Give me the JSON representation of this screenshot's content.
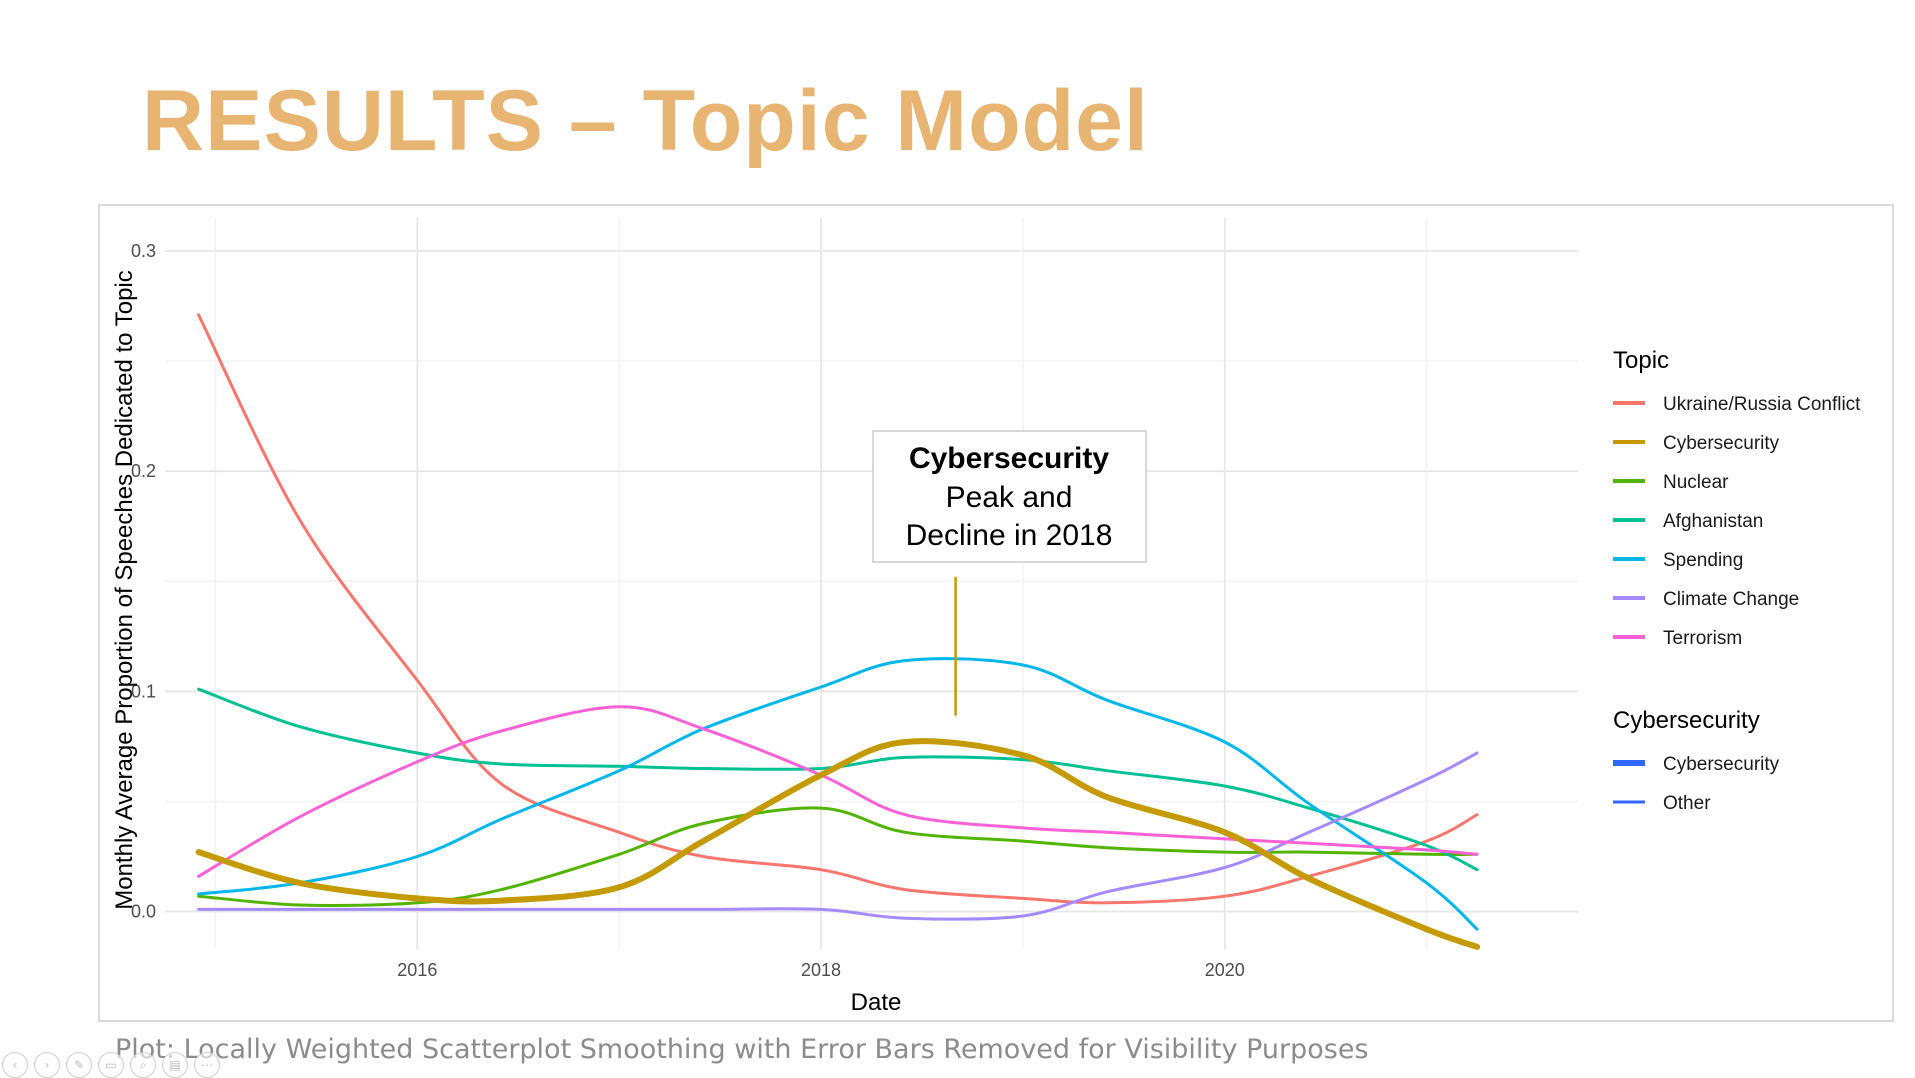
{
  "slide": {
    "title": "RESULTS – Topic Model",
    "caption": "Plot: Locally Weighted Scatterplot Smoothing with Error Bars Removed for Visibility Purposes",
    "title_color": "#E8B472",
    "nav_icons": [
      "prev-icon",
      "next-icon",
      "pen-icon",
      "slides-icon",
      "zoom-icon",
      "subtitles-icon",
      "more-icon"
    ]
  },
  "chart_data": {
    "type": "line",
    "xlabel": "Date",
    "ylabel": "Monthly Average Proportion of Speeches Dedicated to Topic",
    "xlim": [
      "2014-10",
      "2021-10"
    ],
    "ylim": [
      -0.017,
      0.315
    ],
    "x_ticks": [
      "2016",
      "2018",
      "2020"
    ],
    "y_ticks": [
      "0.0",
      "0.1",
      "0.2",
      "0.3"
    ],
    "grid": true,
    "legend_placement": "right",
    "legend_topic_title": "Topic",
    "legend_group_title": "Cybersecurity",
    "group_entries": [
      {
        "name": "Cybersecurity",
        "color": "#3366FF"
      },
      {
        "name": "Other",
        "color": "#3366FF"
      }
    ],
    "x": [
      "2014-12",
      "2015-06",
      "2016-01",
      "2016-06",
      "2017-01",
      "2017-06",
      "2018-01",
      "2018-06",
      "2019-01",
      "2019-06",
      "2020-01",
      "2020-06",
      "2021-01",
      "2021-04"
    ],
    "series": [
      {
        "name": "Ukraine/Russia Conflict",
        "color": "#F8766D",
        "width": 3,
        "values": [
          0.271,
          0.178,
          0.105,
          0.058,
          0.036,
          0.025,
          0.019,
          0.01,
          0.006,
          0.004,
          0.007,
          0.016,
          0.032,
          0.044
        ]
      },
      {
        "name": "Cybersecurity",
        "color": "#C49A00",
        "width": 6,
        "values": [
          0.027,
          0.013,
          0.006,
          0.005,
          0.011,
          0.032,
          0.062,
          0.077,
          0.071,
          0.052,
          0.036,
          0.015,
          -0.008,
          -0.016
        ]
      },
      {
        "name": "Nuclear",
        "color": "#53B400",
        "width": 3,
        "values": [
          0.007,
          0.003,
          0.004,
          0.01,
          0.026,
          0.04,
          0.047,
          0.036,
          0.032,
          0.029,
          0.027,
          0.027,
          0.026,
          0.026
        ]
      },
      {
        "name": "Afghanistan",
        "color": "#00C094",
        "width": 3,
        "values": [
          0.101,
          0.084,
          0.072,
          0.067,
          0.066,
          0.065,
          0.065,
          0.07,
          0.069,
          0.064,
          0.057,
          0.047,
          0.03,
          0.019
        ]
      },
      {
        "name": "Spending",
        "color": "#00B6EB",
        "width": 3,
        "values": [
          0.008,
          0.013,
          0.025,
          0.042,
          0.064,
          0.083,
          0.102,
          0.114,
          0.112,
          0.096,
          0.077,
          0.049,
          0.013,
          -0.008
        ]
      },
      {
        "name": "Climate Change",
        "color": "#A58AFF",
        "width": 3,
        "values": [
          0.001,
          0.001,
          0.001,
          0.001,
          0.001,
          0.001,
          0.001,
          -0.003,
          -0.002,
          0.009,
          0.02,
          0.036,
          0.06,
          0.072
        ]
      },
      {
        "name": "Terrorism",
        "color": "#FB61D7",
        "width": 3,
        "values": [
          0.016,
          0.043,
          0.068,
          0.082,
          0.093,
          0.083,
          0.062,
          0.044,
          0.038,
          0.036,
          0.033,
          0.031,
          0.028,
          0.026
        ]
      }
    ],
    "annotation": {
      "title": "Cybersecurity",
      "line1": "Peak and",
      "line2": "Decline in 2018",
      "color": "#C49A00",
      "pointer_x": "2018-09",
      "pointer_y": [
        0.089,
        0.152
      ]
    }
  }
}
